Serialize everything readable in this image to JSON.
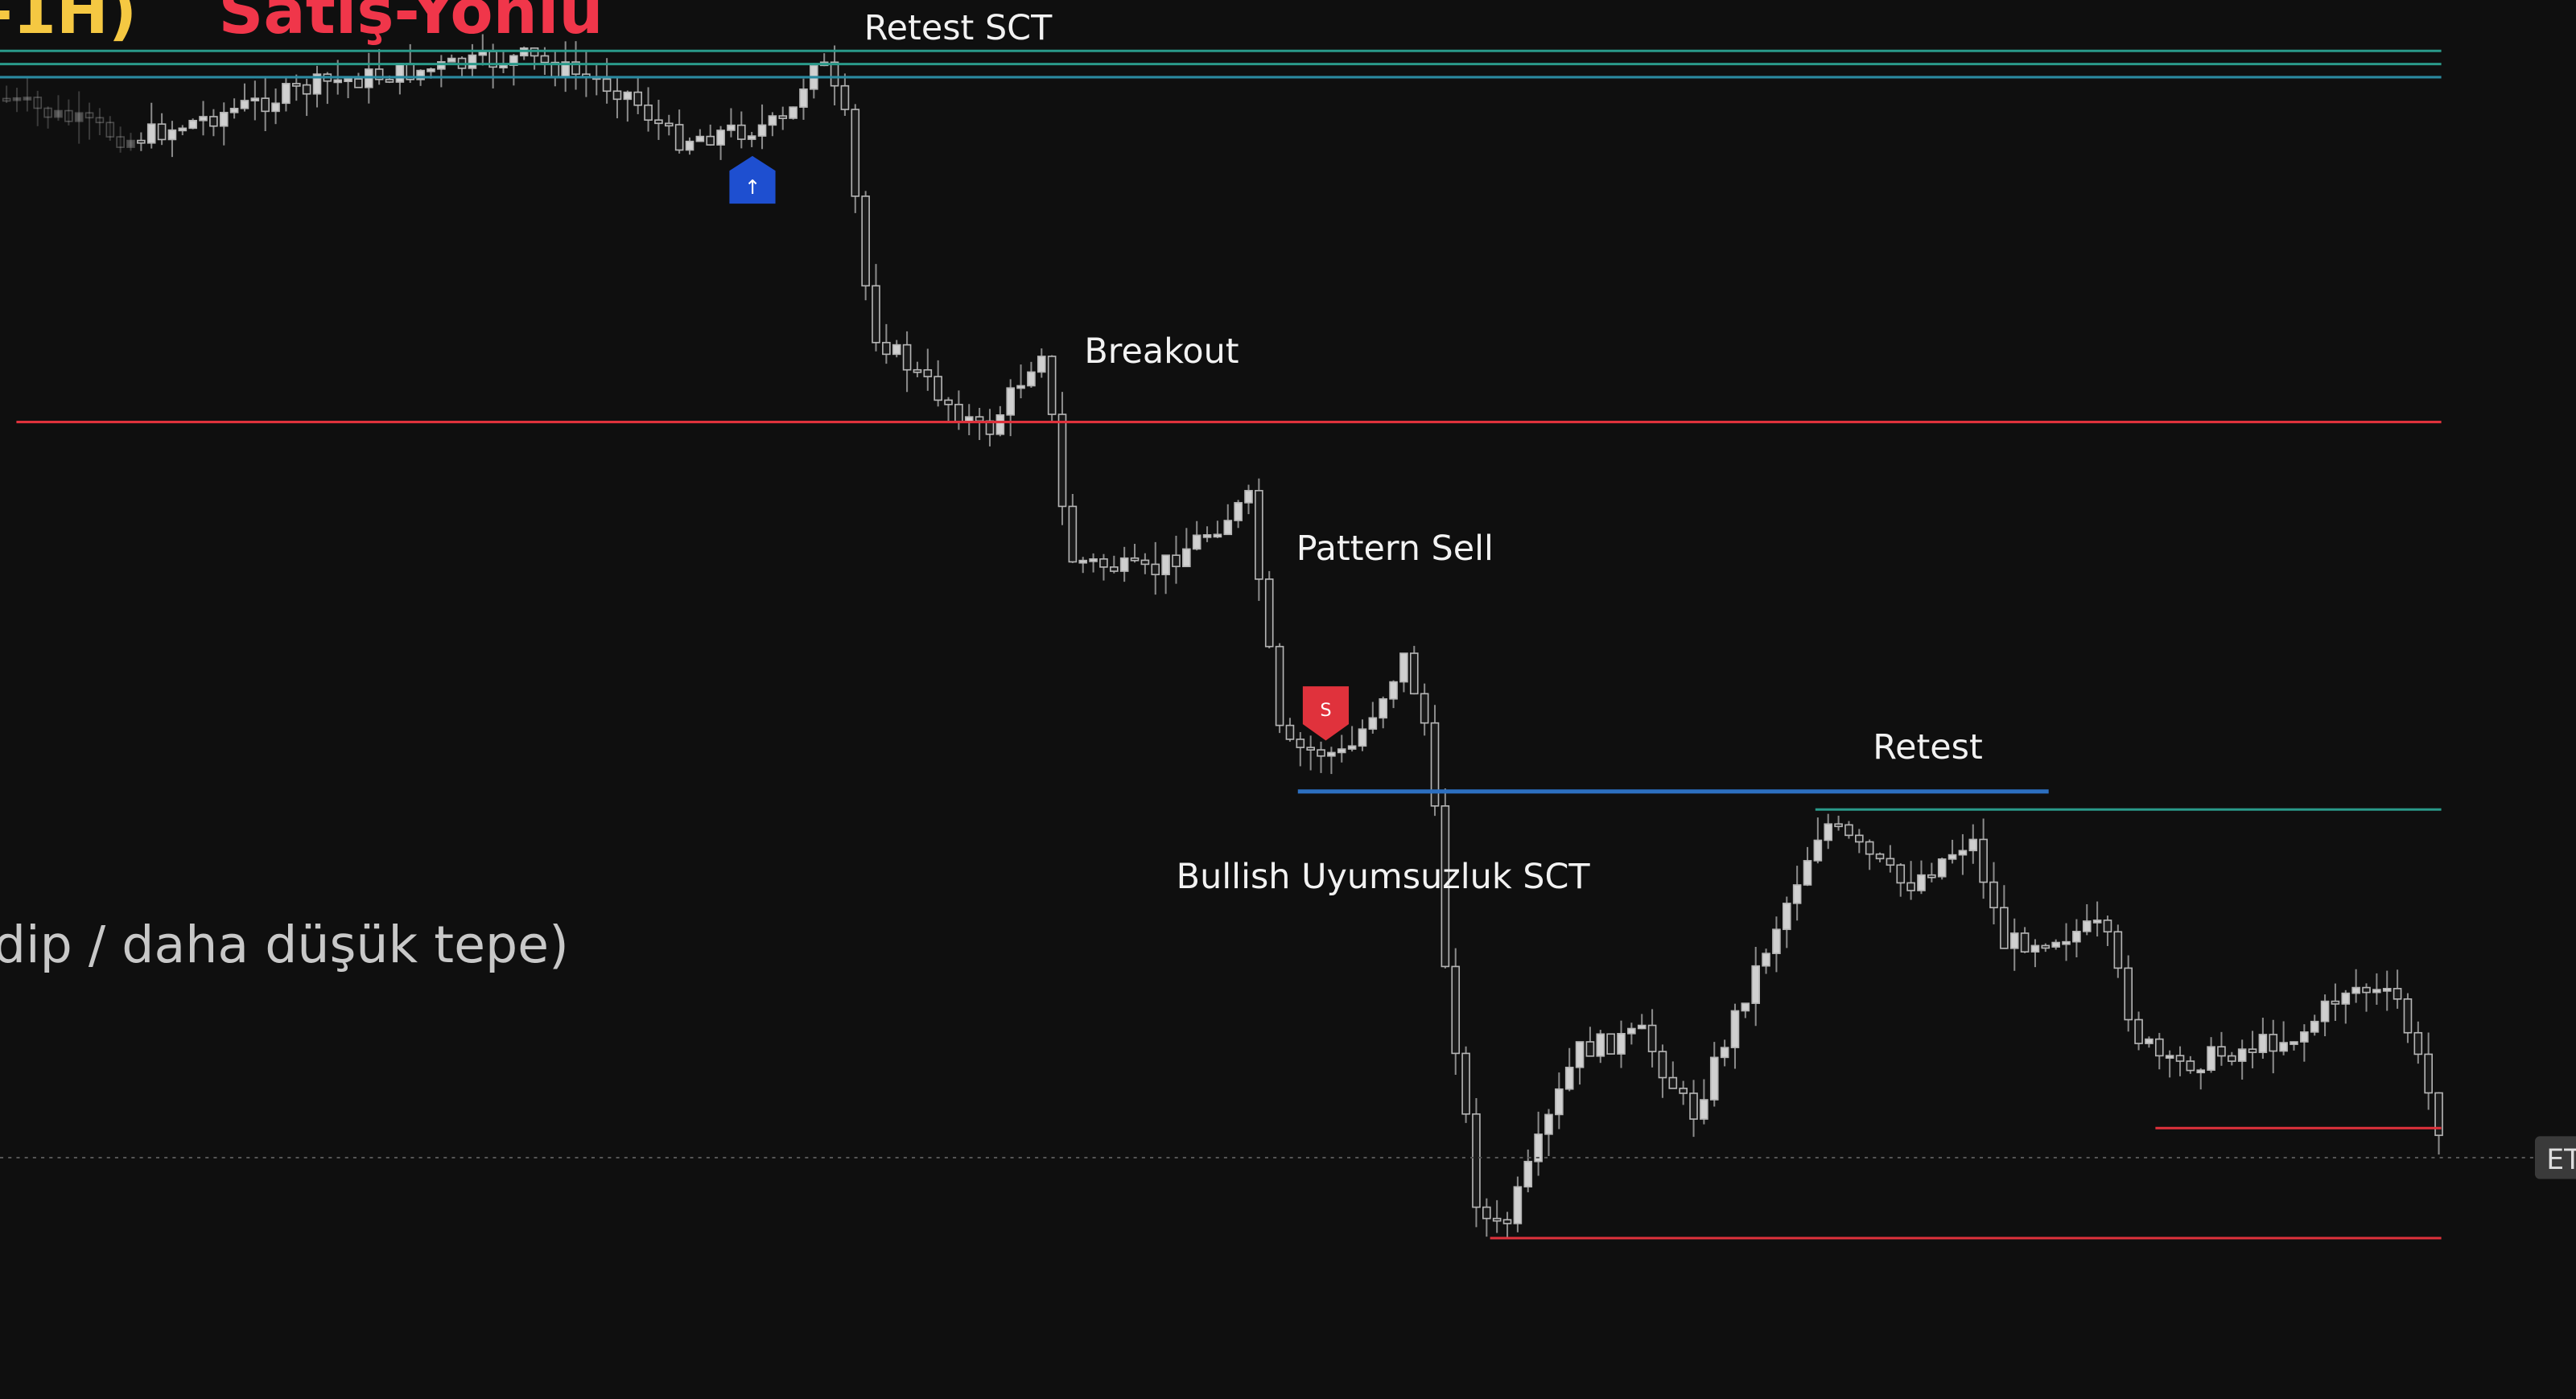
{
  "header": {
    "timeframe": "-1H)",
    "direction": "Satış-Yönlü"
  },
  "labels": [
    "Retest SCT",
    "Breakout",
    "Pattern Sell",
    "Retest",
    "Bullish Uyumsuzluk SCT"
  ],
  "subtitle": "dip / daha düşük tepe)",
  "markers": {
    "buy": "↑",
    "sell": "S"
  },
  "price_tag": "ET"
}
